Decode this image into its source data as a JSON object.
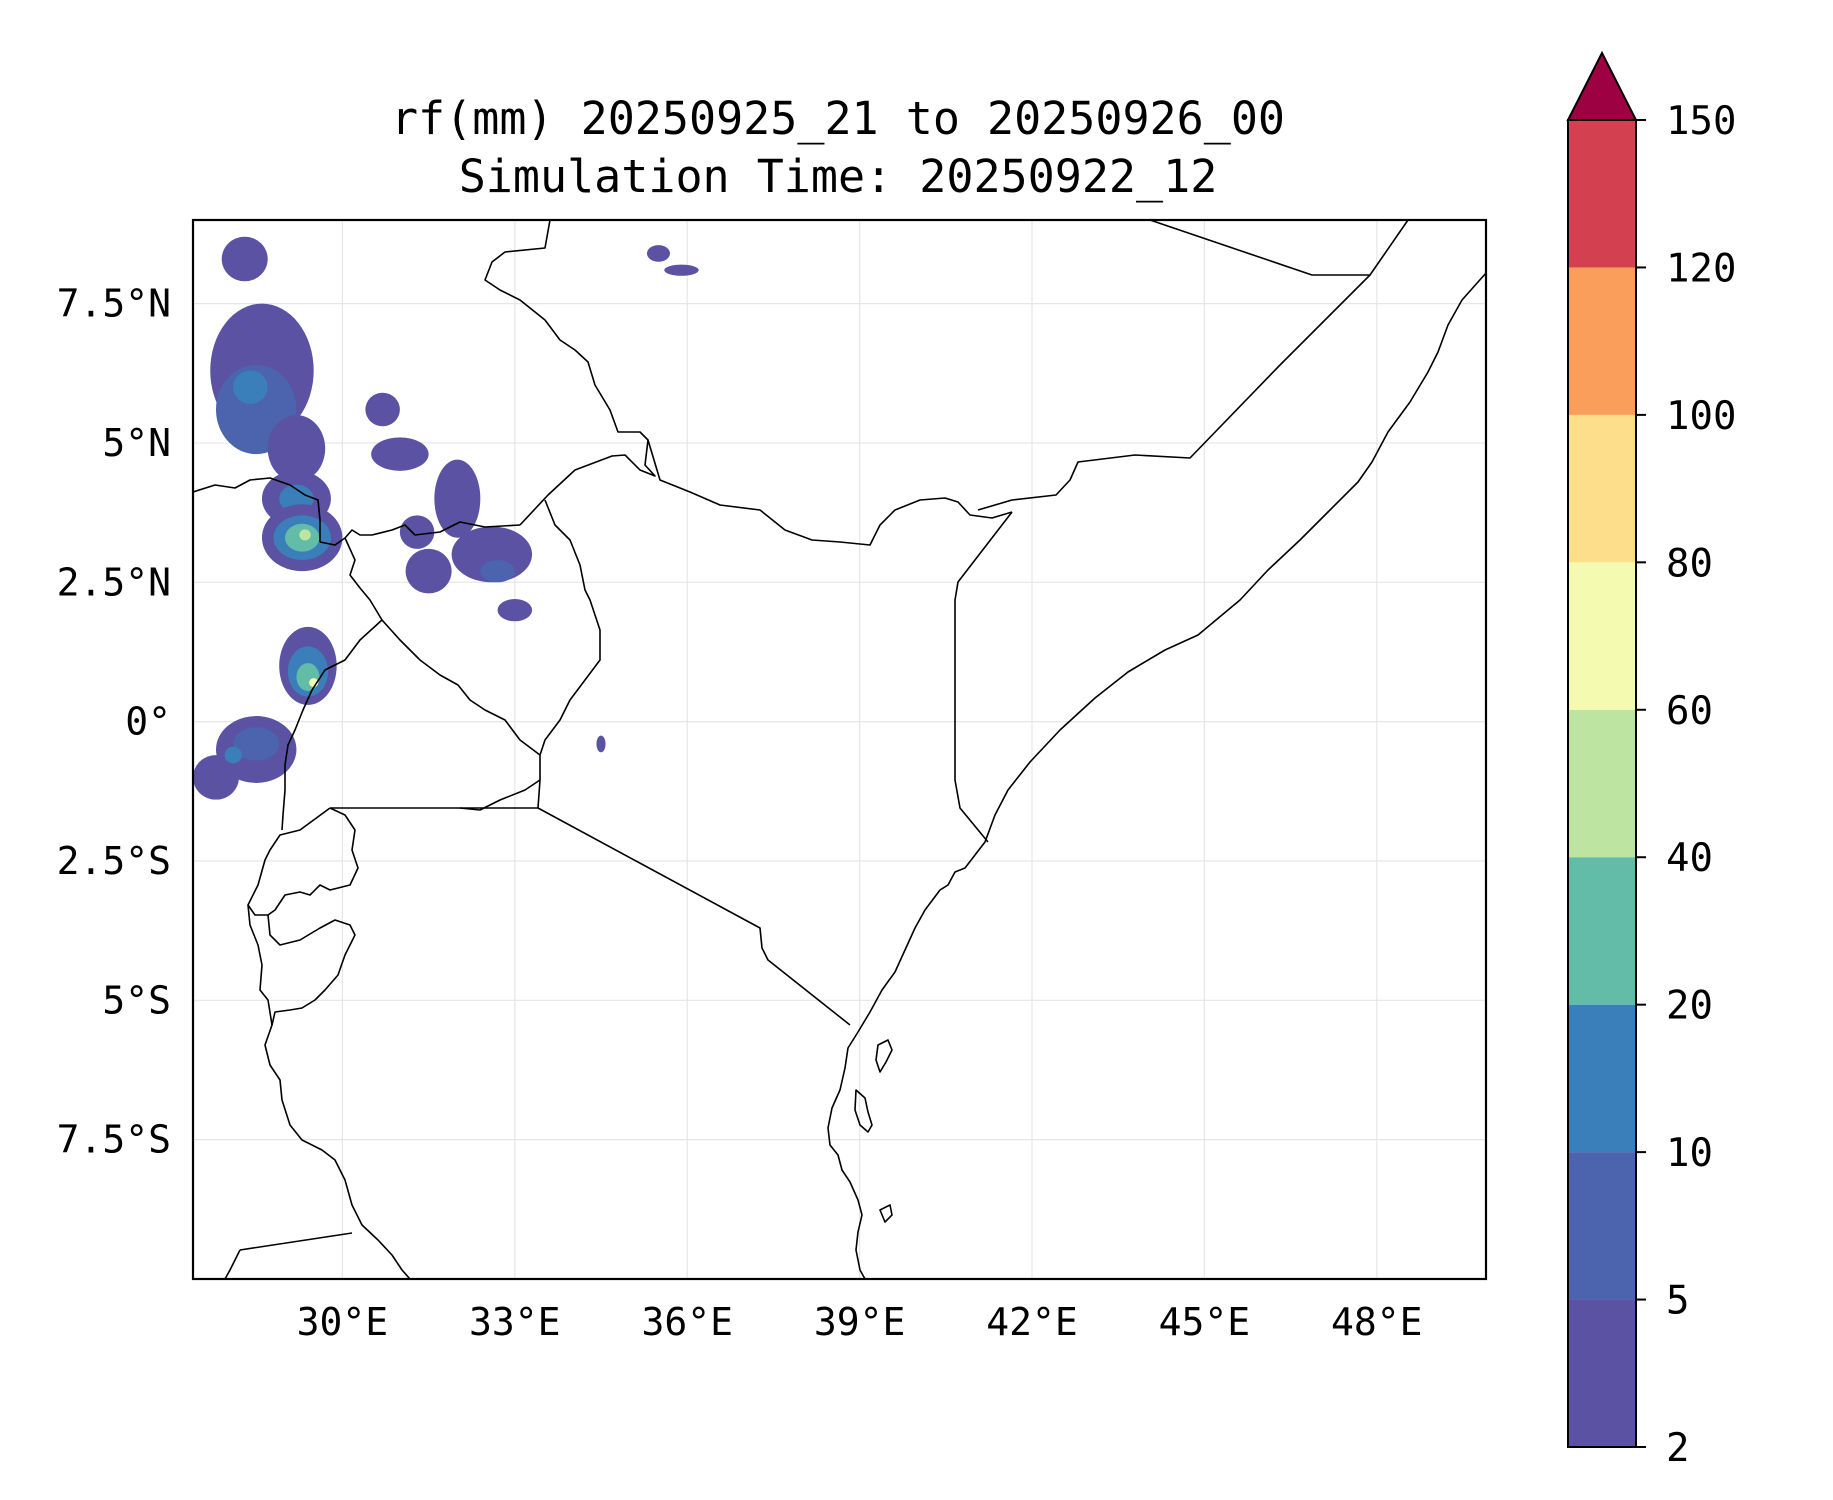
{
  "title_line1": "rf(mm) 20250925_21 to 20250926_00",
  "title_line2": "Simulation Time: 20250922_12",
  "map": {
    "lon_range": [
      27.4,
      49.9
    ],
    "lat_range": [
      -10.0,
      9.0
    ],
    "lon_ticks": [
      30,
      33,
      36,
      39,
      42,
      45,
      48
    ],
    "lon_tick_labels": [
      "30°E",
      "33°E",
      "36°E",
      "39°E",
      "42°E",
      "45°E",
      "48°E"
    ],
    "lat_ticks": [
      7.5,
      5,
      2.5,
      0,
      -2.5,
      -5,
      -7.5
    ],
    "lat_tick_labels": [
      "7.5°N",
      "5°N",
      "2.5°N",
      "0°",
      "2.5°S",
      "5°S",
      "7.5°S"
    ],
    "grid": true
  },
  "colorbar": {
    "levels": [
      2,
      5,
      10,
      20,
      40,
      60,
      80,
      100,
      120,
      150
    ],
    "level_labels": [
      "2",
      "5",
      "10",
      "20",
      "40",
      "60",
      "80",
      "100",
      "120",
      "150"
    ],
    "colors": [
      "#5b52a3",
      "#4b64ad",
      "#3a7fb9",
      "#62bca8",
      "#bde4a0",
      "#f4fbb1",
      "#fcde8b",
      "#f99e5b",
      "#d3404f"
    ],
    "extend_color": "#9e0142",
    "extend": "max"
  },
  "rain_cells": [
    {
      "lon": 28.3,
      "lat": 8.3,
      "rx": 0.4,
      "ry": 0.4,
      "level": 0
    },
    {
      "lon": 28.6,
      "lat": 6.3,
      "rx": 0.9,
      "ry": 1.2,
      "level": 0
    },
    {
      "lon": 28.5,
      "lat": 5.6,
      "rx": 0.7,
      "ry": 0.8,
      "level": 1
    },
    {
      "lon": 28.4,
      "lat": 6.0,
      "rx": 0.3,
      "ry": 0.3,
      "level": 2
    },
    {
      "lon": 29.2,
      "lat": 4.9,
      "rx": 0.5,
      "ry": 0.6,
      "level": 0
    },
    {
      "lon": 31.0,
      "lat": 4.8,
      "rx": 0.5,
      "ry": 0.3,
      "level": 0
    },
    {
      "lon": 30.7,
      "lat": 5.6,
      "rx": 0.3,
      "ry": 0.3,
      "level": 0
    },
    {
      "lon": 29.2,
      "lat": 4.0,
      "rx": 0.6,
      "ry": 0.5,
      "level": 0
    },
    {
      "lon": 29.2,
      "lat": 4.0,
      "rx": 0.3,
      "ry": 0.25,
      "level": 2
    },
    {
      "lon": 29.3,
      "lat": 3.3,
      "rx": 0.7,
      "ry": 0.6,
      "level": 0
    },
    {
      "lon": 29.3,
      "lat": 3.3,
      "rx": 0.5,
      "ry": 0.4,
      "level": 2
    },
    {
      "lon": 29.3,
      "lat": 3.3,
      "rx": 0.3,
      "ry": 0.25,
      "level": 3
    },
    {
      "lon": 29.35,
      "lat": 3.35,
      "rx": 0.1,
      "ry": 0.1,
      "level": 4
    },
    {
      "lon": 32.0,
      "lat": 4.0,
      "rx": 0.4,
      "ry": 0.7,
      "level": 0
    },
    {
      "lon": 32.6,
      "lat": 3.0,
      "rx": 0.7,
      "ry": 0.5,
      "level": 0
    },
    {
      "lon": 32.7,
      "lat": 2.7,
      "rx": 0.3,
      "ry": 0.2,
      "level": 1
    },
    {
      "lon": 31.3,
      "lat": 3.4,
      "rx": 0.3,
      "ry": 0.3,
      "level": 0
    },
    {
      "lon": 31.5,
      "lat": 2.7,
      "rx": 0.4,
      "ry": 0.4,
      "level": 0
    },
    {
      "lon": 33.0,
      "lat": 2.0,
      "rx": 0.3,
      "ry": 0.2,
      "level": 0
    },
    {
      "lon": 29.4,
      "lat": 1.0,
      "rx": 0.5,
      "ry": 0.7,
      "level": 0
    },
    {
      "lon": 29.4,
      "lat": 0.9,
      "rx": 0.35,
      "ry": 0.45,
      "level": 2
    },
    {
      "lon": 29.4,
      "lat": 0.8,
      "rx": 0.2,
      "ry": 0.25,
      "level": 3
    },
    {
      "lon": 29.5,
      "lat": 0.7,
      "rx": 0.08,
      "ry": 0.08,
      "level": 5
    },
    {
      "lon": 28.5,
      "lat": -0.5,
      "rx": 0.7,
      "ry": 0.6,
      "level": 0
    },
    {
      "lon": 28.5,
      "lat": -0.4,
      "rx": 0.4,
      "ry": 0.3,
      "level": 1
    },
    {
      "lon": 27.8,
      "lat": -1.0,
      "rx": 0.4,
      "ry": 0.4,
      "level": 0
    },
    {
      "lon": 28.1,
      "lat": -0.6,
      "rx": 0.15,
      "ry": 0.15,
      "level": 2
    },
    {
      "lon": 35.9,
      "lat": 8.1,
      "rx": 0.3,
      "ry": 0.1,
      "level": 0
    },
    {
      "lon": 35.5,
      "lat": 8.4,
      "rx": 0.2,
      "ry": 0.15,
      "level": 0
    },
    {
      "lon": 34.5,
      "lat": -0.4,
      "rx": 0.08,
      "ry": 0.15,
      "level": 0
    }
  ]
}
